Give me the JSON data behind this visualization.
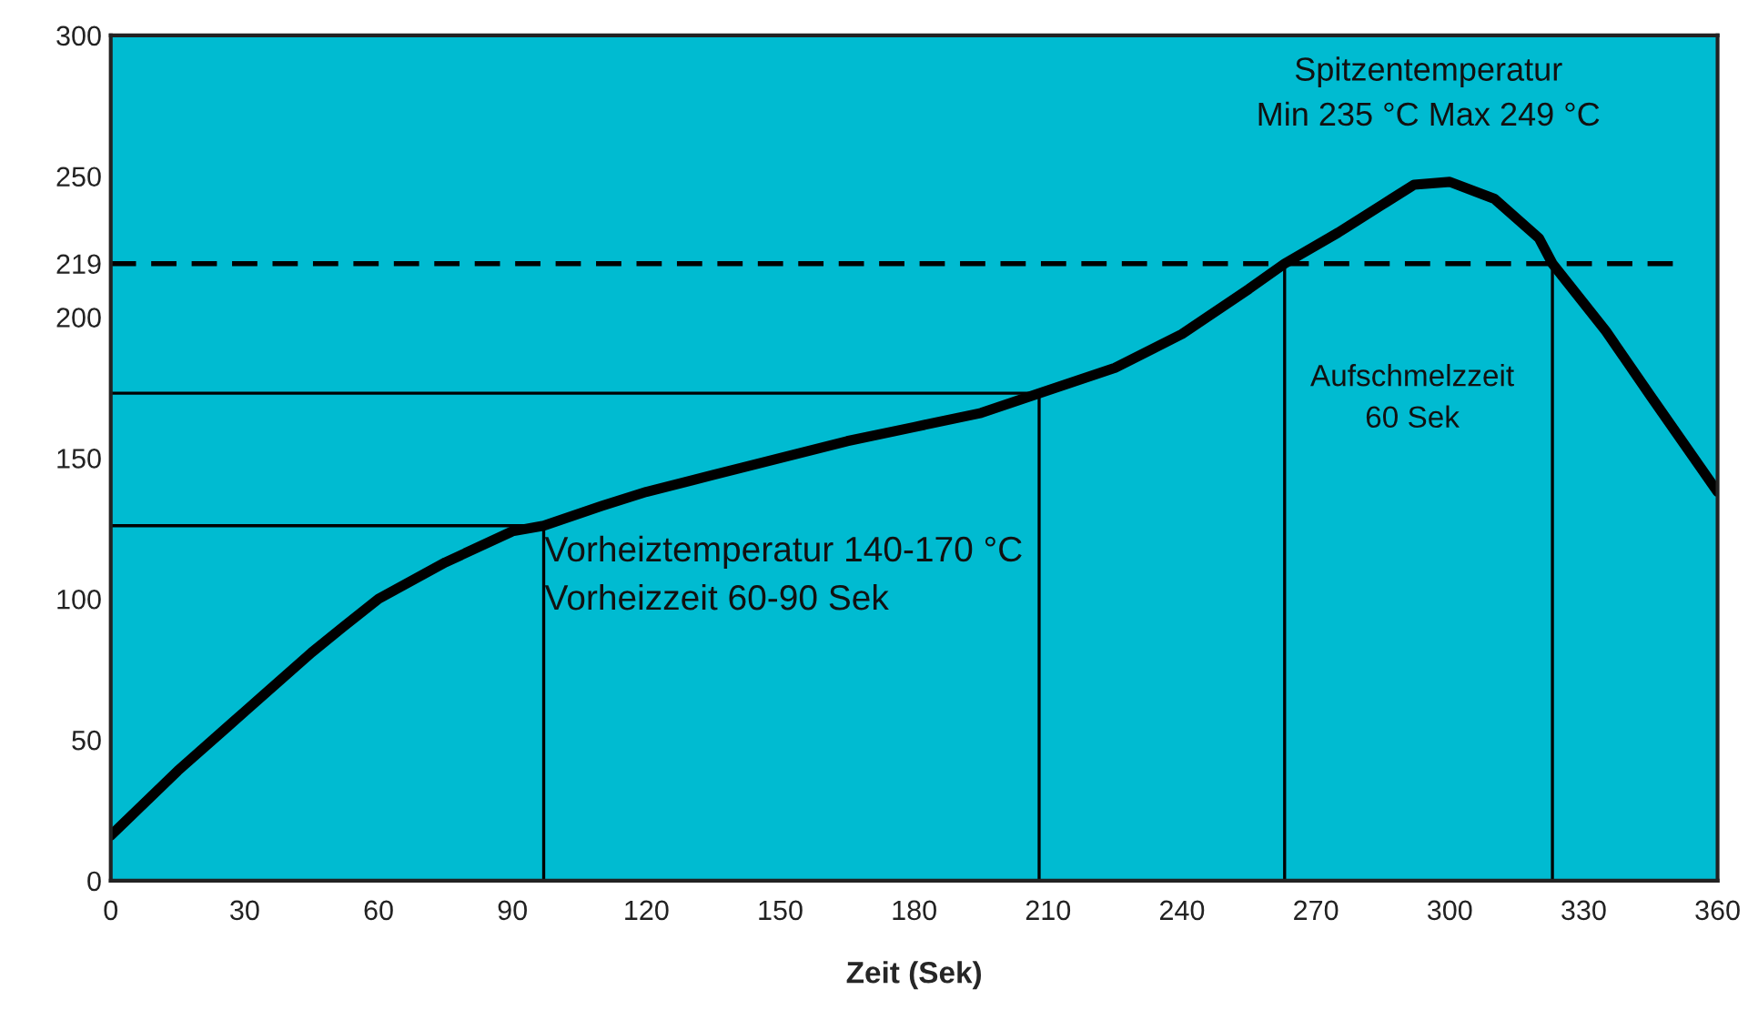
{
  "chart_data": {
    "type": "line",
    "xlabel": "Zeit (Sek)",
    "x": [
      0,
      15,
      30,
      45,
      52,
      60,
      75,
      90,
      97,
      110,
      120,
      135,
      150,
      165,
      180,
      195,
      208,
      225,
      240,
      255,
      263,
      275,
      285,
      292,
      300,
      310,
      320,
      323,
      335,
      345,
      360
    ],
    "series": [
      {
        "color": "#000000",
        "values": [
          16,
          39,
          60,
          81,
          90,
          100,
          113,
          124,
          126,
          133,
          138,
          144,
          150,
          156,
          161,
          166,
          173,
          182,
          194,
          210,
          219,
          230,
          240,
          247,
          248,
          242,
          228,
          219,
          195,
          172,
          138
        ]
      }
    ],
    "xlim": [
      0,
      360
    ],
    "xticks": [
      0,
      30,
      60,
      90,
      120,
      150,
      180,
      210,
      240,
      270,
      300,
      330,
      360
    ],
    "ylim": [
      0,
      300
    ],
    "yticks": [
      0,
      50,
      100,
      150,
      200,
      219,
      250,
      300
    ],
    "ref_lines": [
      {
        "axis": "y",
        "value": 219,
        "line_style": "dashed",
        "color": "#000000"
      },
      {
        "axis": "x",
        "value": 97,
        "color": "#000000"
      },
      {
        "axis": "x",
        "value": 208,
        "color": "#000000"
      },
      {
        "axis": "x",
        "value": 263,
        "color": "#000000"
      },
      {
        "axis": "x",
        "value": 323,
        "color": "#000000"
      },
      {
        "axis": "y",
        "value": 126,
        "color": "#000000"
      },
      {
        "axis": "y",
        "value": 173,
        "color": "#000000"
      }
    ],
    "annotations": [
      "Spitzentemperatur\nMin 235 °C Max 249 °C",
      "Aufschmelzzeit\n60 Sek",
      "Vorheiztemperatur 140-170 °C\nVorheizzeit 60-90 Sek"
    ],
    "grid": false,
    "legend": false,
    "marker": "none",
    "line_style": "solid"
  }
}
